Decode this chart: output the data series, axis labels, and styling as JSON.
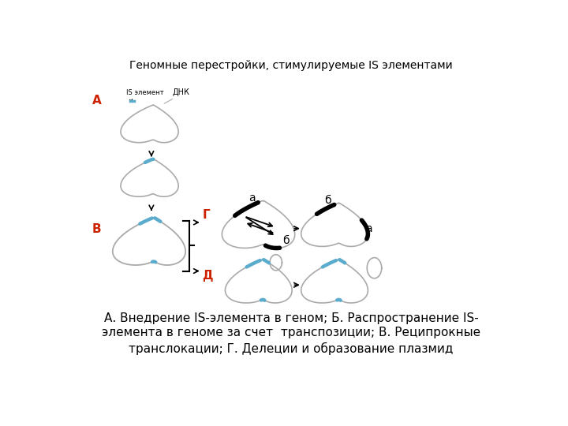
{
  "title": "Геномные перестройки, стимулируемые IS элементами",
  "label_is": "IS элемент",
  "label_dnk": "ДНК",
  "label_A": "А",
  "label_B": "В",
  "label_G": "Г",
  "label_D": "Д",
  "label_a": "а",
  "label_b": "б",
  "caption_line1": "А. Внедрение IS-элемента в геном; Б. Распространение IS-",
  "caption_line2": "элемента в геноме за счет  транспозиции; В. Реципрокные",
  "caption_line3": "транслокации; Г. Делеции и образование плазмид",
  "bg_color": "#ffffff",
  "text_color": "#000000",
  "red_color": "#cc2200",
  "blue_color": "#5aabcc",
  "gray_color": "#aaaaaa"
}
